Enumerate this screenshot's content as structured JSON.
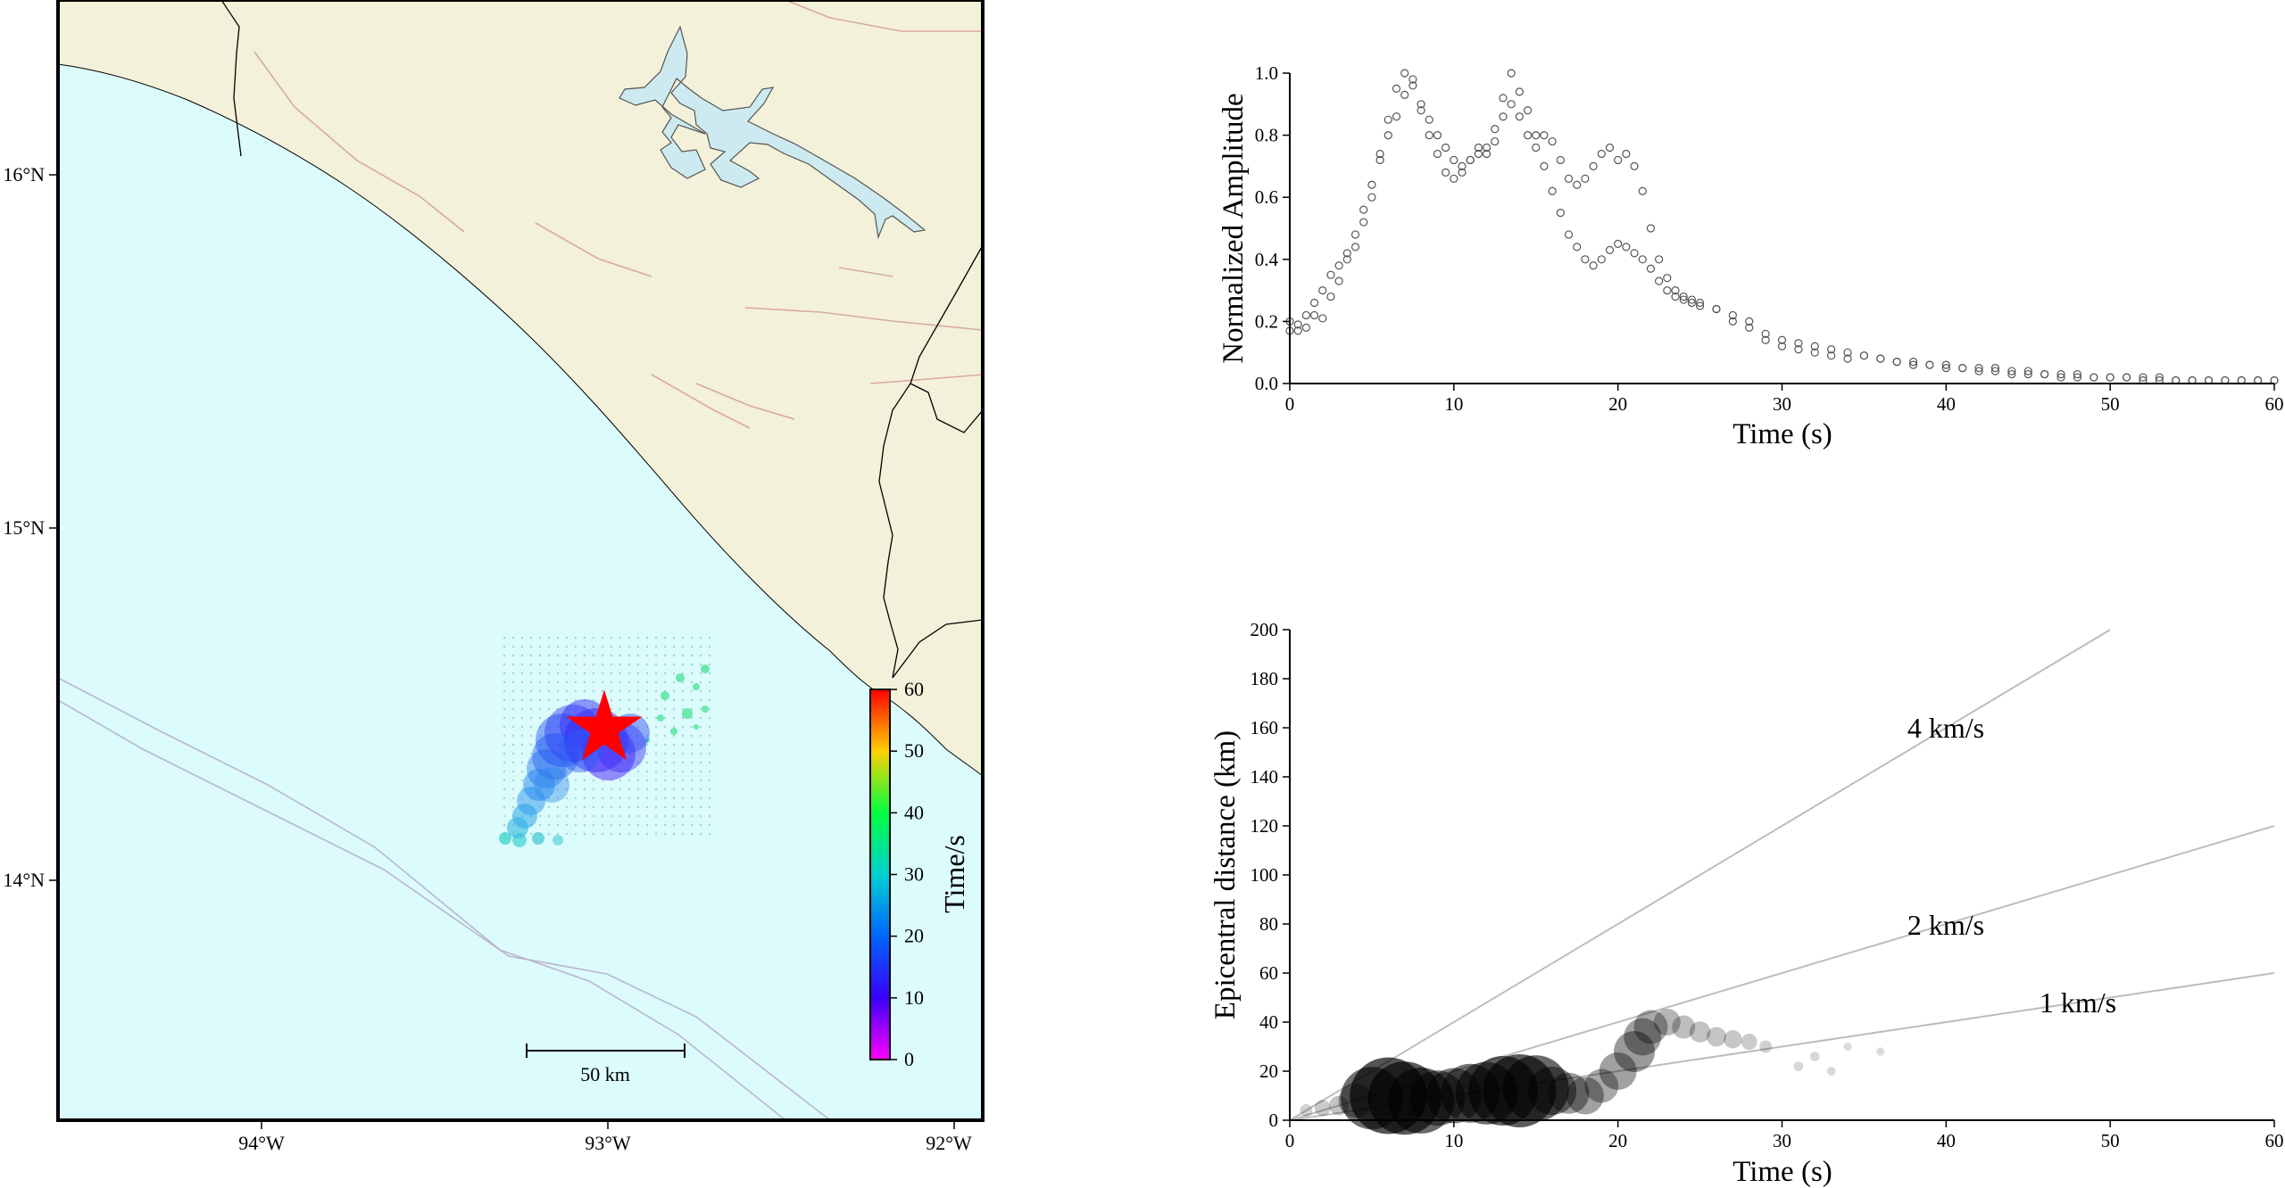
{
  "map": {
    "x_ticks": [
      "94°W",
      "93°W",
      "92°W"
    ],
    "y_ticks": [
      "16°N",
      "15°N",
      "14°N"
    ],
    "scale_bar_label": "50 km",
    "colorbar": {
      "label": "Time/s",
      "ticks": [
        "0",
        "10",
        "20",
        "30",
        "40",
        "50",
        "60"
      ],
      "range": [
        0,
        60
      ]
    },
    "colors": {
      "land": "#f3f1d9",
      "sea": "#dcfbfc",
      "lake": "#cdeaf0",
      "border": "#000000",
      "fault": "#d8a9a5",
      "trench": "#b9b7c9",
      "epicenter": "#ff0000"
    },
    "epicenter_marker": "star",
    "epicenter_lon_lat": [
      -92.97,
      14.4
    ]
  },
  "chart_data": [
    {
      "type": "scatter",
      "xlabel": "Time (s)",
      "ylabel": "Normalized Amplitude",
      "xlim": [
        0,
        60
      ],
      "ylim": [
        0,
        1.0
      ],
      "xticks": [
        "0",
        "10",
        "20",
        "30",
        "40",
        "50",
        "60"
      ],
      "yticks": [
        "0.0",
        "0.2",
        "0.4",
        "0.6",
        "0.8",
        "1.0"
      ],
      "marker": "open-circle",
      "marker_color": "#555555",
      "series": [
        {
          "points": [
            [
              0,
              0.2
            ],
            [
              0.5,
              0.17
            ],
            [
              1,
              0.18
            ],
            [
              1.5,
              0.22
            ],
            [
              2,
              0.21
            ],
            [
              2.5,
              0.28
            ],
            [
              3,
              0.33
            ],
            [
              3.5,
              0.4
            ],
            [
              4,
              0.44
            ],
            [
              4.5,
              0.52
            ],
            [
              5,
              0.6
            ],
            [
              5.5,
              0.72
            ],
            [
              6,
              0.85
            ],
            [
              6.5,
              0.95
            ],
            [
              7,
              1.0
            ],
            [
              7.5,
              0.96
            ],
            [
              8,
              0.9
            ],
            [
              8.5,
              0.85
            ],
            [
              9,
              0.8
            ],
            [
              9.5,
              0.76
            ],
            [
              10,
              0.72
            ],
            [
              10.5,
              0.7
            ],
            [
              11,
              0.72
            ],
            [
              11.5,
              0.74
            ],
            [
              12,
              0.76
            ],
            [
              12.5,
              0.82
            ],
            [
              13,
              0.92
            ],
            [
              13.5,
              1.0
            ],
            [
              14,
              0.94
            ],
            [
              14.5,
              0.88
            ],
            [
              15,
              0.8
            ],
            [
              15.5,
              0.7
            ],
            [
              16,
              0.62
            ],
            [
              16.5,
              0.55
            ],
            [
              17,
              0.48
            ],
            [
              17.5,
              0.44
            ],
            [
              18,
              0.4
            ],
            [
              18.5,
              0.38
            ],
            [
              19,
              0.4
            ],
            [
              19.5,
              0.43
            ],
            [
              20,
              0.45
            ],
            [
              20.5,
              0.44
            ],
            [
              21,
              0.42
            ],
            [
              21.5,
              0.4
            ],
            [
              22,
              0.37
            ],
            [
              22.5,
              0.33
            ],
            [
              23,
              0.3
            ],
            [
              23.5,
              0.28
            ],
            [
              24,
              0.27
            ],
            [
              24.5,
              0.26
            ],
            [
              25,
              0.25
            ],
            [
              26,
              0.24
            ],
            [
              27,
              0.22
            ],
            [
              28,
              0.2
            ],
            [
              29,
              0.16
            ],
            [
              30,
              0.14
            ],
            [
              31,
              0.13
            ],
            [
              32,
              0.12
            ],
            [
              33,
              0.11
            ],
            [
              34,
              0.1
            ],
            [
              35,
              0.09
            ],
            [
              36,
              0.08
            ],
            [
              37,
              0.07
            ],
            [
              38,
              0.06
            ],
            [
              39,
              0.06
            ],
            [
              40,
              0.05
            ],
            [
              41,
              0.05
            ],
            [
              42,
              0.04
            ],
            [
              43,
              0.04
            ],
            [
              44,
              0.03
            ],
            [
              45,
              0.03
            ],
            [
              46,
              0.03
            ],
            [
              47,
              0.02
            ],
            [
              48,
              0.02
            ],
            [
              49,
              0.02
            ],
            [
              50,
              0.02
            ],
            [
              51,
              0.02
            ],
            [
              52,
              0.01
            ],
            [
              53,
              0.01
            ],
            [
              54,
              0.01
            ],
            [
              55,
              0.01
            ],
            [
              56,
              0.01
            ],
            [
              57,
              0.01
            ],
            [
              58,
              0.01
            ],
            [
              59,
              0.01
            ],
            [
              60,
              0.01
            ]
          ]
        },
        {
          "points": [
            [
              0,
              0.17
            ],
            [
              0.5,
              0.19
            ],
            [
              1,
              0.22
            ],
            [
              1.5,
              0.26
            ],
            [
              2,
              0.3
            ],
            [
              2.5,
              0.35
            ],
            [
              3,
              0.38
            ],
            [
              3.5,
              0.42
            ],
            [
              4,
              0.48
            ],
            [
              4.5,
              0.56
            ],
            [
              5,
              0.64
            ],
            [
              5.5,
              0.74
            ],
            [
              6,
              0.8
            ],
            [
              6.5,
              0.86
            ],
            [
              7,
              0.93
            ],
            [
              7.5,
              0.98
            ],
            [
              8,
              0.88
            ],
            [
              8.5,
              0.8
            ],
            [
              9,
              0.74
            ],
            [
              9.5,
              0.68
            ],
            [
              10,
              0.66
            ],
            [
              10.5,
              0.68
            ],
            [
              11,
              0.72
            ],
            [
              11.5,
              0.76
            ],
            [
              12,
              0.74
            ],
            [
              12.5,
              0.78
            ],
            [
              13,
              0.86
            ],
            [
              13.5,
              0.9
            ],
            [
              14,
              0.86
            ],
            [
              14.5,
              0.8
            ],
            [
              15,
              0.76
            ],
            [
              15.5,
              0.8
            ],
            [
              16,
              0.78
            ],
            [
              16.5,
              0.72
            ],
            [
              17,
              0.66
            ],
            [
              17.5,
              0.64
            ],
            [
              18,
              0.66
            ],
            [
              18.5,
              0.7
            ],
            [
              19,
              0.74
            ],
            [
              19.5,
              0.76
            ],
            [
              20,
              0.72
            ],
            [
              20.5,
              0.74
            ],
            [
              21,
              0.7
            ],
            [
              21.5,
              0.62
            ],
            [
              22,
              0.5
            ],
            [
              22.5,
              0.4
            ],
            [
              23,
              0.34
            ],
            [
              23.5,
              0.3
            ],
            [
              24,
              0.28
            ],
            [
              24.5,
              0.27
            ],
            [
              25,
              0.26
            ],
            [
              26,
              0.24
            ],
            [
              27,
              0.2
            ],
            [
              28,
              0.18
            ],
            [
              29,
              0.14
            ],
            [
              30,
              0.12
            ],
            [
              31,
              0.11
            ],
            [
              32,
              0.1
            ],
            [
              33,
              0.09
            ],
            [
              34,
              0.08
            ],
            [
              35,
              0.09
            ],
            [
              36,
              0.08
            ],
            [
              37,
              0.07
            ],
            [
              38,
              0.07
            ],
            [
              39,
              0.06
            ],
            [
              40,
              0.06
            ],
            [
              41,
              0.05
            ],
            [
              42,
              0.05
            ],
            [
              43,
              0.05
            ],
            [
              44,
              0.04
            ],
            [
              45,
              0.04
            ],
            [
              46,
              0.03
            ],
            [
              47,
              0.03
            ],
            [
              48,
              0.03
            ],
            [
              49,
              0.02
            ],
            [
              50,
              0.02
            ],
            [
              51,
              0.02
            ],
            [
              52,
              0.02
            ],
            [
              53,
              0.02
            ],
            [
              54,
              0.01
            ],
            [
              55,
              0.01
            ],
            [
              56,
              0.01
            ],
            [
              57,
              0.01
            ],
            [
              58,
              0.01
            ],
            [
              59,
              0.01
            ],
            [
              60,
              0.01
            ]
          ]
        }
      ]
    },
    {
      "type": "scatter",
      "xlabel": "Time (s)",
      "ylabel": "Epicentral distance (km)",
      "xlim": [
        0,
        60
      ],
      "ylim": [
        0,
        200
      ],
      "xticks": [
        "0",
        "10",
        "20",
        "30",
        "40",
        "50",
        "60"
      ],
      "yticks": [
        "0",
        "20",
        "40",
        "60",
        "80",
        "100",
        "120",
        "140",
        "160",
        "180",
        "200"
      ],
      "marker": "filled-circle-sized-by-amplitude",
      "marker_color": "#000000",
      "points": [
        [
          1,
          4,
          0.1
        ],
        [
          2,
          5,
          0.15
        ],
        [
          3,
          6,
          0.2
        ],
        [
          4,
          8,
          0.4
        ],
        [
          5,
          9,
          0.8
        ],
        [
          6,
          10,
          1.0
        ],
        [
          7,
          9,
          0.95
        ],
        [
          8,
          8,
          0.85
        ],
        [
          9,
          9,
          0.7
        ],
        [
          10,
          10,
          0.7
        ],
        [
          11,
          11,
          0.75
        ],
        [
          12,
          11,
          0.8
        ],
        [
          13,
          12,
          0.9
        ],
        [
          14,
          12,
          0.95
        ],
        [
          15,
          13,
          0.85
        ],
        [
          16,
          12,
          0.6
        ],
        [
          17,
          11,
          0.5
        ],
        [
          18,
          10,
          0.45
        ],
        [
          19,
          14,
          0.4
        ],
        [
          20,
          20,
          0.45
        ],
        [
          21,
          28,
          0.5
        ],
        [
          21.5,
          34,
          0.45
        ],
        [
          22,
          38,
          0.4
        ],
        [
          23,
          40,
          0.3
        ],
        [
          24,
          38,
          0.25
        ],
        [
          25,
          36,
          0.22
        ],
        [
          26,
          34,
          0.2
        ],
        [
          27,
          33,
          0.18
        ],
        [
          28,
          32,
          0.15
        ],
        [
          29,
          30,
          0.1
        ],
        [
          31,
          22,
          0.06
        ],
        [
          32,
          26,
          0.06
        ],
        [
          33,
          20,
          0.05
        ],
        [
          34,
          30,
          0.04
        ],
        [
          36,
          28,
          0.04
        ]
      ],
      "reference_lines": [
        {
          "label": "4 km/s",
          "velocity": 4
        },
        {
          "label": "2 km/s",
          "velocity": 2
        },
        {
          "label": "1 km/s",
          "velocity": 1
        }
      ]
    }
  ]
}
